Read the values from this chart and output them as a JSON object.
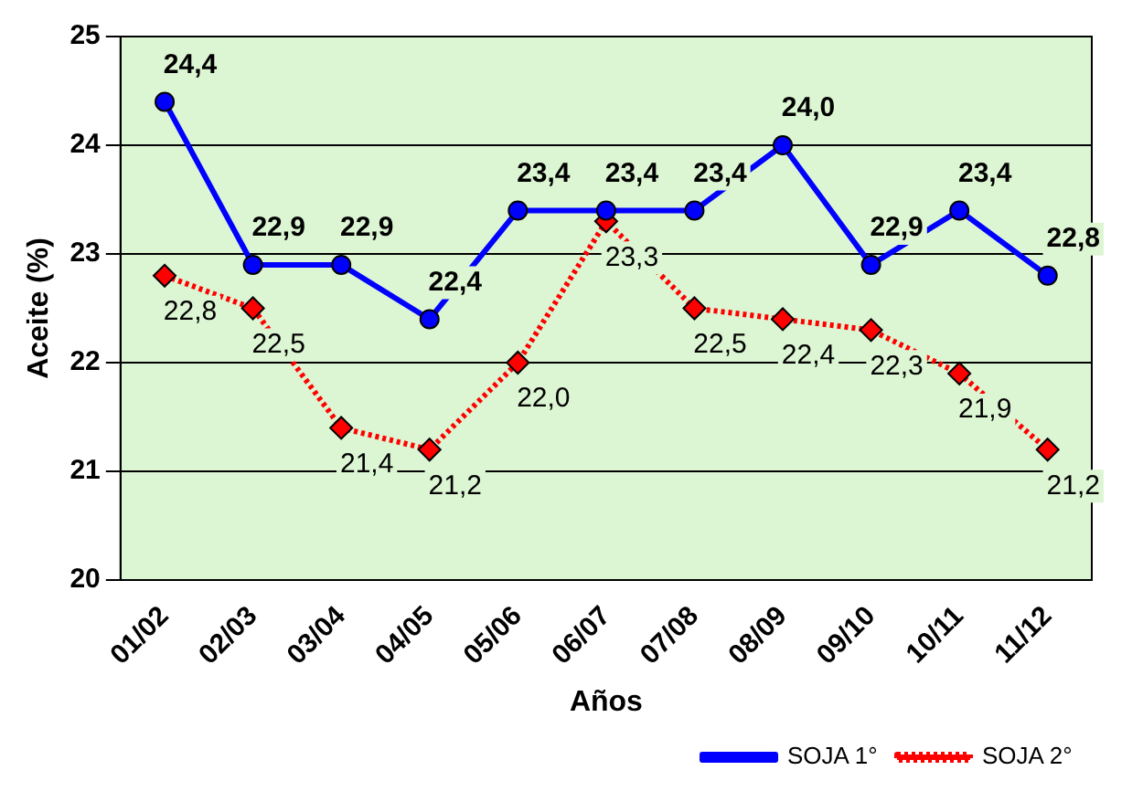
{
  "chart_data": {
    "type": "line",
    "xlabel": "Años",
    "ylabel": "Aceite (%)",
    "categories": [
      "01/02",
      "02/03",
      "03/04",
      "04/05",
      "05/06",
      "06/07",
      "07/08",
      "08/09",
      "09/10",
      "10/11",
      "11/12"
    ],
    "series": [
      {
        "name": "SOJA 1°",
        "color": "#0000ff",
        "marker": "circle",
        "line_style": "solid",
        "values": [
          24.4,
          22.9,
          22.9,
          22.4,
          23.4,
          23.4,
          23.4,
          24.0,
          22.9,
          23.4,
          22.8
        ],
        "value_labels": [
          "24,4",
          "22,9",
          "22,9",
          "22,4",
          "23,4",
          "23,4",
          "23,4",
          "24,0",
          "22,9",
          "23,4",
          "22,8"
        ]
      },
      {
        "name": "SOJA 2°",
        "color": "#ff0000",
        "marker": "diamond",
        "line_style": "dotted",
        "values": [
          22.8,
          22.5,
          21.4,
          21.2,
          22.0,
          23.3,
          22.5,
          22.4,
          22.3,
          21.9,
          21.2
        ],
        "value_labels": [
          "22,8",
          "22,5",
          "21,4",
          "21,2",
          "22,0",
          "23,3",
          "22,5",
          "22,4",
          "22,3",
          "21,9",
          "21,2"
        ]
      }
    ],
    "ylim": [
      20,
      25
    ],
    "yticks": [
      20,
      21,
      22,
      23,
      24,
      25
    ],
    "grid": "y",
    "legend": "bottom right"
  }
}
